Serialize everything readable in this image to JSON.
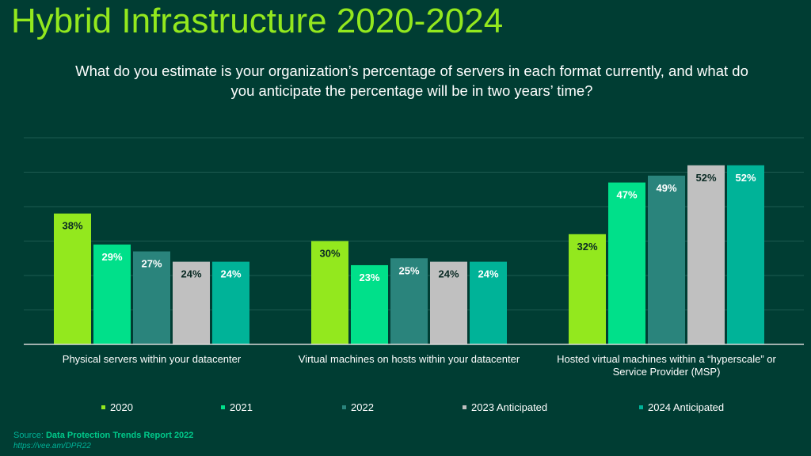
{
  "title": "Hybrid Infrastructure 2020-2024",
  "subtitle": "What do you estimate is your organization’s percentage of servers in each format currently, and what do you anticipate the percentage will be in two years’ time?",
  "source_prefix": "Source: ",
  "source_name": "Data Protection Trends Report 2022",
  "source_url": "https://vee.am/DPR22",
  "chart_data": {
    "type": "bar",
    "categories": [
      "Physical servers within your datacenter",
      "Virtual machines on hosts within your datacenter",
      "Hosted virtual machines within a “hyperscale” or Service Provider (MSP)"
    ],
    "series": [
      {
        "name": "2020",
        "values": [
          38,
          30,
          32
        ],
        "labels": [
          "38%",
          "30%",
          "32%"
        ],
        "color": "#93e81e"
      },
      {
        "name": "2021",
        "values": [
          29,
          23,
          47
        ],
        "labels": [
          "29%",
          "23%",
          "47%"
        ],
        "color": "#00e08a"
      },
      {
        "name": "2022",
        "values": [
          27,
          25,
          49
        ],
        "labels": [
          "27%",
          "25%",
          "49%"
        ],
        "color": "#2a847c"
      },
      {
        "name": "2023 Anticipated",
        "values": [
          24,
          24,
          52
        ],
        "labels": [
          "24%",
          "24%",
          "52%"
        ],
        "color": "#c0c0c0"
      },
      {
        "name": "2024 Anticipated",
        "values": [
          24,
          24,
          52
        ],
        "labels": [
          "24%",
          "24%",
          "52%"
        ],
        "color": "#00b398"
      }
    ],
    "ylim": [
      0,
      60
    ],
    "grid": true,
    "legend": "bottom"
  }
}
